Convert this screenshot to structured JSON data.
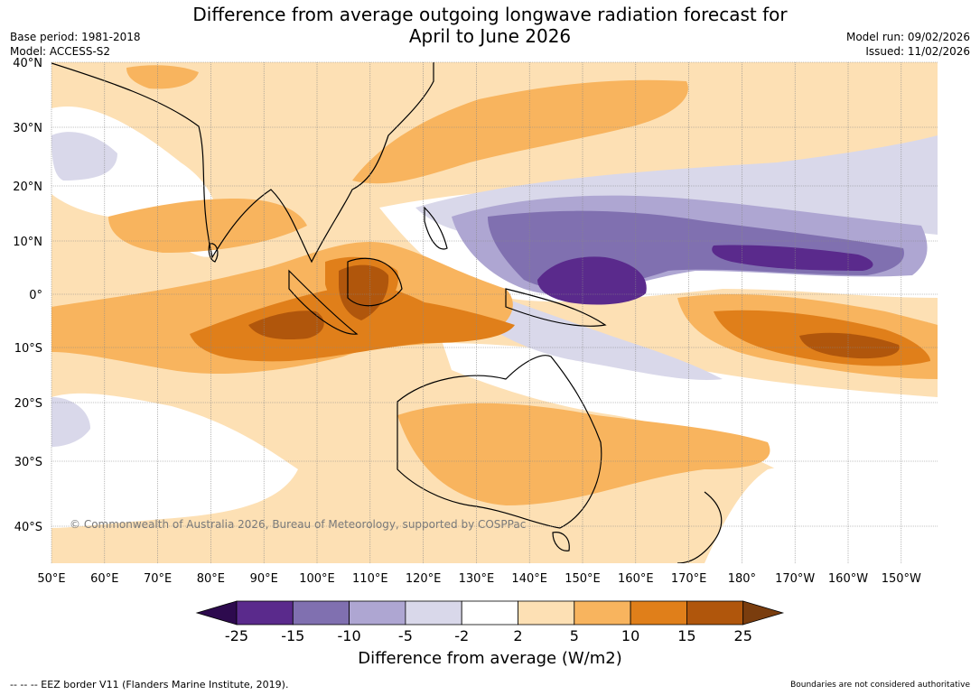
{
  "title_line1": "Difference from average outgoing longwave radiation forecast for",
  "title_line2": "April to June 2026",
  "base_period": "Base period: 1981-2018",
  "model": "Model: ACCESS-S2",
  "model_run": "Model run: 09/02/2026",
  "issued": "Issued: 11/02/2026",
  "copyright": "© Commonwealth of Australia 2026, Bureau of Meteorology, supported by COSPPac",
  "lat_labels": [
    "40°N",
    "30°N",
    "20°N",
    "10°N",
    "0°",
    "10°S",
    "20°S",
    "30°S",
    "40°S"
  ],
  "lon_labels": [
    "50°E",
    "60°E",
    "70°E",
    "80°E",
    "90°E",
    "100°E",
    "110°E",
    "120°E",
    "130°E",
    "140°E",
    "150°E",
    "160°E",
    "170°E",
    "180°",
    "170°W",
    "160°W",
    "150°W"
  ],
  "legend": {
    "title": "Difference from average (W/m2)",
    "ticks": [
      "-25",
      "-15",
      "-10",
      "-5",
      "-2",
      "2",
      "5",
      "10",
      "15",
      "25"
    ],
    "colors": [
      "#2d0a4e",
      "#5a2a8c",
      "#8070b0",
      "#aea6d2",
      "#d9d8ea",
      "#ffffff",
      "#fde0b4",
      "#f8b45e",
      "#e07f1a",
      "#b0560c",
      "#7a3d0e"
    ]
  },
  "footer_left": "--  --  -- EEZ border V11 (Flanders Marine Institute, 2019).",
  "footer_right": "Boundaries are not considered authoritative"
}
